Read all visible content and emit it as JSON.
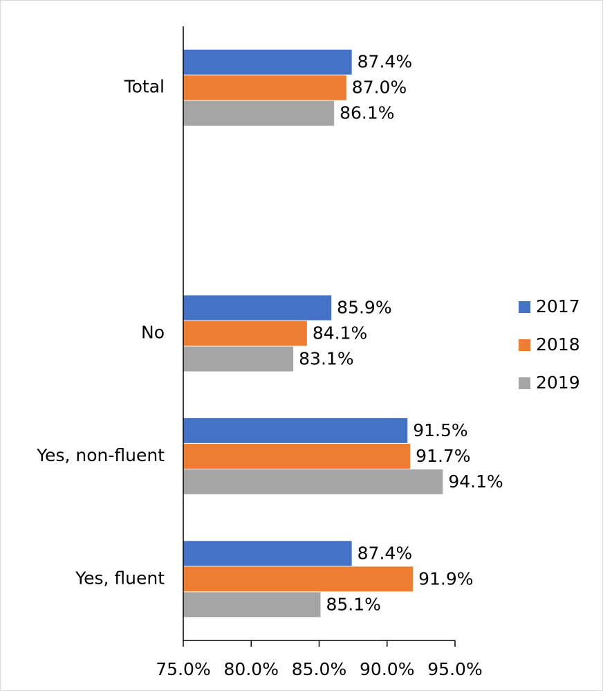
{
  "chart_data": {
    "type": "hbar",
    "categories": [
      "Total",
      null,
      "No",
      "Yes, non-fluent",
      "Yes, fluent"
    ],
    "series": [
      {
        "name": "2017",
        "color": "#4472c4",
        "values": [
          87.4,
          null,
          85.9,
          91.5,
          87.4
        ],
        "value_labels": [
          "87.4%",
          null,
          "85.9%",
          "91.5%",
          "87.4%"
        ]
      },
      {
        "name": "2018",
        "color": "#ed7d31",
        "values": [
          87.0,
          null,
          84.1,
          91.7,
          91.9
        ],
        "value_labels": [
          "87.0%",
          null,
          "84.1%",
          "91.7%",
          "91.9%"
        ]
      },
      {
        "name": "2019",
        "color": "#a5a5a5",
        "values": [
          86.1,
          null,
          83.1,
          94.1,
          85.1
        ],
        "value_labels": [
          "86.1%",
          null,
          "83.1%",
          "94.1%",
          "85.1%"
        ]
      }
    ],
    "xlim": [
      75,
      95
    ],
    "xticks": [
      {
        "value": 75,
        "label": "75.0%"
      },
      {
        "value": 80,
        "label": "80.0%"
      },
      {
        "value": 85,
        "label": "85.0%"
      },
      {
        "value": 90,
        "label": "90.0%"
      },
      {
        "value": 95,
        "label": "95.0%"
      }
    ],
    "legend": "right"
  }
}
